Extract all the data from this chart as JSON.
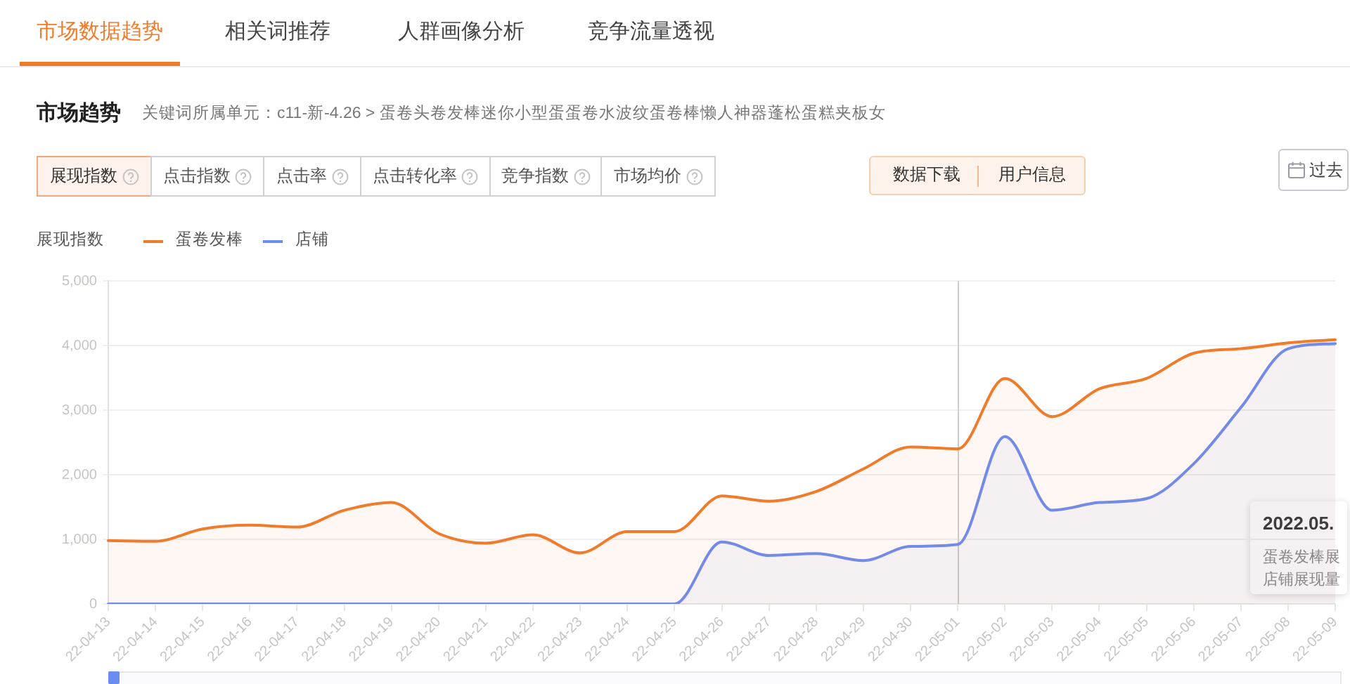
{
  "chart_data": {
    "type": "area",
    "title": "市场趋势",
    "subtitle": "关键词所属单元：c11-新-4.26 > 蛋卷头卷发棒迷你小型蛋蛋卷水波纹蛋卷棒懒人神器蓬松蛋糕夹板女",
    "ylabel": "展现指数",
    "categories": [
      "22-04-13",
      "22-04-14",
      "22-04-15",
      "22-04-16",
      "22-04-17",
      "22-04-18",
      "22-04-19",
      "22-04-20",
      "22-04-21",
      "22-04-22",
      "22-04-23",
      "22-04-24",
      "22-04-25",
      "22-04-26",
      "22-04-27",
      "22-04-28",
      "22-04-29",
      "22-04-30",
      "22-05-01",
      "22-05-02",
      "22-05-03",
      "22-05-04",
      "22-05-05",
      "22-05-06",
      "22-05-07",
      "22-05-08",
      "22-05-09"
    ],
    "series": [
      {
        "name": "蛋卷发棒",
        "color": "#f07b2b",
        "values": [
          980,
          970,
          1160,
          1220,
          1190,
          1450,
          1570,
          1090,
          940,
          1070,
          790,
          1120,
          1120,
          1670,
          1590,
          1740,
          2090,
          2430,
          2400,
          3490,
          2900,
          3330,
          3490,
          3880,
          3950,
          4040,
          4090
        ]
      },
      {
        "name": "店铺",
        "color": "#6c8cf2",
        "values": [
          0,
          0,
          0,
          0,
          0,
          0,
          0,
          0,
          0,
          0,
          0,
          0,
          0,
          960,
          750,
          780,
          670,
          890,
          920,
          2590,
          1450,
          1570,
          1630,
          2170,
          3040,
          3950,
          4030
        ]
      }
    ],
    "ylim": [
      0,
      5000
    ],
    "yticks": [
      0,
      {
        "value": 1000,
        "label": "1,000"
      },
      {
        "value": 2000,
        "label": "2,000"
      },
      {
        "value": 3000,
        "label": "3,000"
      },
      {
        "value": 4000,
        "label": "4,000"
      },
      {
        "value": 5000,
        "label": "5,000"
      }
    ],
    "grid": "y",
    "legend": "top left",
    "marker": "none",
    "ref_lines": [
      {
        "axis": "x",
        "value": "22-05-01",
        "color": "#cccccc"
      }
    ],
    "annotations": [
      "市场数据趋势",
      "相关词推荐",
      "人群画像分析",
      "竞争流量透视",
      "展现指数",
      "点击指数",
      "点击率",
      "点击转化率",
      "竞争指数",
      "市场均价",
      "数据下载",
      "用户信息",
      "过去",
      "2022.05.",
      "蛋卷发棒展",
      "店铺展现量"
    ]
  }
}
